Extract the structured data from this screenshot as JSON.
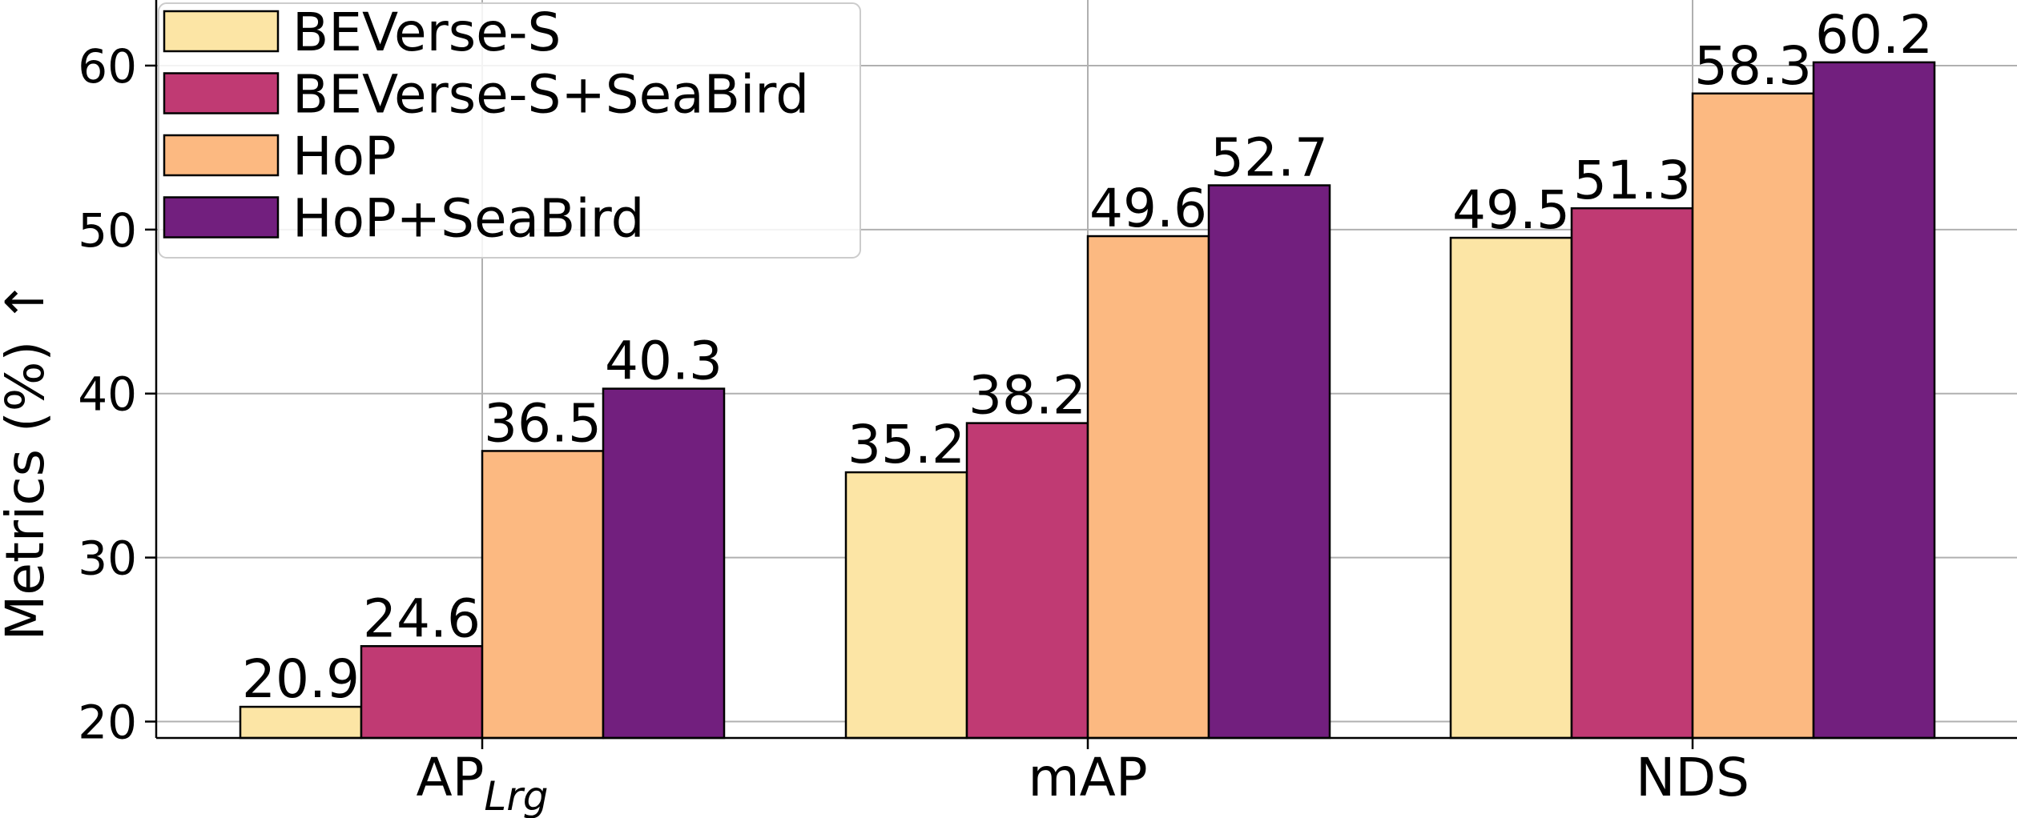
{
  "chart_data": {
    "type": "bar",
    "categories": [
      "AP",
      "mAP",
      "NDS"
    ],
    "category_subscripts": [
      "Lrg",
      "",
      ""
    ],
    "series": [
      {
        "name": "BEVerse-S",
        "values": [
          20.9,
          35.2,
          49.5
        ],
        "color": "#fce5a5"
      },
      {
        "name": "BEVerse-S+SeaBird",
        "values": [
          24.6,
          38.2,
          51.3
        ],
        "color": "#c03a73"
      },
      {
        "name": "HoP",
        "values": [
          36.5,
          49.6,
          58.3
        ],
        "color": "#fcb981"
      },
      {
        "name": "HoP+SeaBird",
        "values": [
          40.3,
          52.7,
          60.2
        ],
        "color": "#721f7e"
      }
    ],
    "ylabel": "Metrics (%) ↑",
    "xlabel": "",
    "ylim": [
      19,
      64
    ],
    "yticks": [
      20,
      30,
      40,
      50,
      60
    ],
    "grid": true,
    "legend_position": "top-left"
  }
}
